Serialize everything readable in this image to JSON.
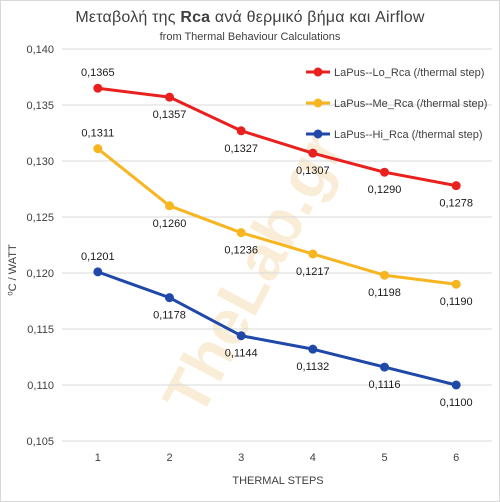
{
  "chart_data": {
    "type": "line",
    "title_plain": "Μεταβολή της ",
    "title_bold": "Rca",
    "title_rest": " ανά θερμικό βήμα και  Airflow",
    "subtitle": "from Thermal Behaviour Calculations",
    "xlabel": "THERMAL STEPS",
    "ylabel": "⁰C / WATT",
    "categories": [
      "1",
      "2",
      "3",
      "4",
      "5",
      "6"
    ],
    "ylim": [
      0.105,
      0.14
    ],
    "yticks": [
      "0,105",
      "0,110",
      "0,115",
      "0,120",
      "0,125",
      "0,130",
      "0,135",
      "0,140"
    ],
    "grid": true,
    "legend_position": "top-right",
    "series": [
      {
        "name": "LaPus--Lo_Rca (/thermal step)",
        "color": "#e8201e",
        "values": [
          0.1365,
          0.1357,
          0.1327,
          0.1307,
          0.129,
          0.1278
        ],
        "labels": [
          "0,1365",
          "0,1357",
          "0,1327",
          "0,1307",
          "0,1290",
          "0,1278"
        ]
      },
      {
        "name": "LaPus--Me_Rca (/thermal step)",
        "color": "#f7b520",
        "values": [
          0.1311,
          0.126,
          0.1236,
          0.1217,
          0.1198,
          0.119
        ],
        "labels": [
          "0,1311",
          "0,1260",
          "0,1236",
          "0,1217",
          "0,1198",
          "0,1190"
        ]
      },
      {
        "name": "LaPus--Hi_Rca (/thermal step)",
        "color": "#1f48a8",
        "values": [
          0.1201,
          0.1178,
          0.1144,
          0.1132,
          0.1116,
          0.11
        ],
        "labels": [
          "0,1201",
          "0,1178",
          "0,1144",
          "0,1132",
          "0,1116",
          "0,1100"
        ]
      }
    ]
  },
  "watermark": "TheLab.gr"
}
